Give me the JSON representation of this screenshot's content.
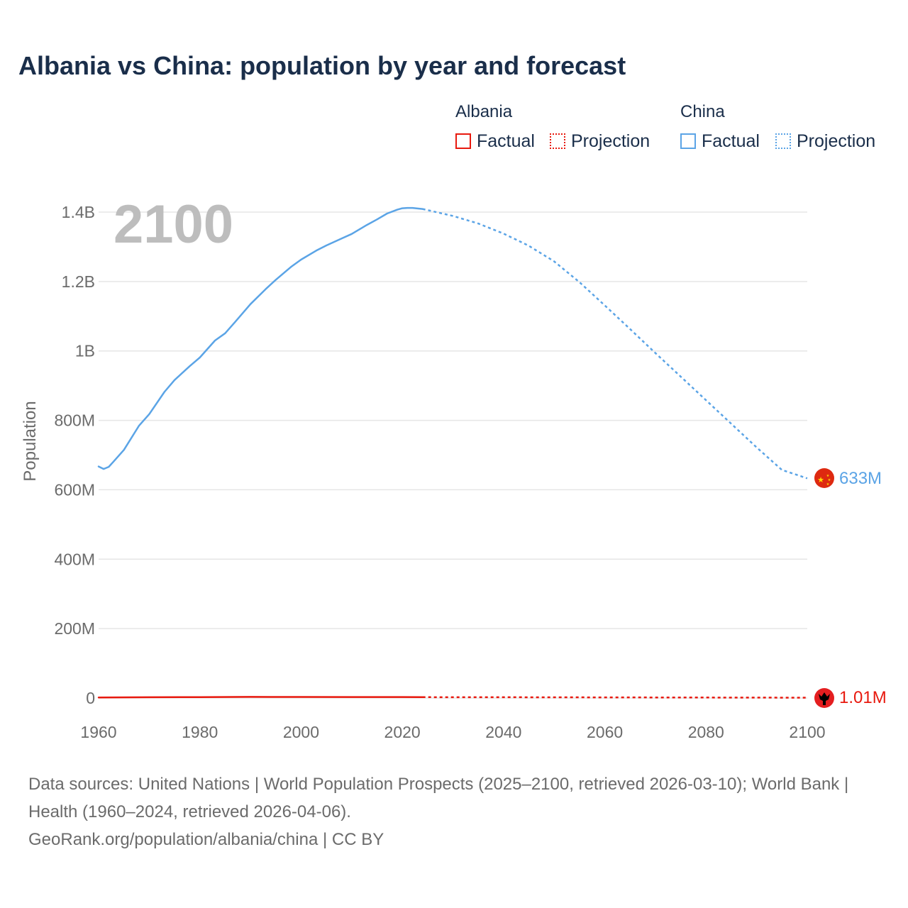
{
  "title": "Albania vs China: population by year and forecast",
  "legend": {
    "groups": [
      {
        "name": "Albania",
        "color": "#e8190e",
        "factual_label": "Factual",
        "projection_label": "Projection"
      },
      {
        "name": "China",
        "color": "#5ba4e6",
        "factual_label": "Factual",
        "projection_label": "Projection"
      }
    ]
  },
  "year_label": "2100",
  "end_labels": {
    "china": "633M",
    "albania": "1.01M"
  },
  "footer": {
    "sources": "Data sources: United Nations | World Population Prospects (2025–2100, retrieved 2026-03-10); World Bank | Health (1960–2024, retrieved 2026-04-06).",
    "credit": "GeoRank.org/population/albania/china | CC BY"
  },
  "chart_data": {
    "type": "line",
    "title": "Albania vs China: population by year and forecast",
    "xlabel": "",
    "ylabel": "Population",
    "xlim": [
      1960,
      2100
    ],
    "ylim": [
      0,
      1400000000
    ],
    "x_ticks": [
      1960,
      1980,
      2000,
      2020,
      2040,
      2060,
      2080,
      2100
    ],
    "x_tick_labels": [
      "1960",
      "1980",
      "2000",
      "2020",
      "2040",
      "2060",
      "2080",
      "2100"
    ],
    "y_ticks": [
      0,
      200000000,
      400000000,
      600000000,
      800000000,
      1000000000,
      1200000000,
      1400000000
    ],
    "y_tick_labels": [
      "0",
      "200M",
      "400M",
      "600M",
      "800M",
      "1B",
      "1.2B",
      "1.4B"
    ],
    "grid": true,
    "series": [
      {
        "name": "China",
        "color": "#5ba4e6",
        "factual": {
          "x": [
            1960,
            1961,
            1962,
            1963,
            1965,
            1968,
            1970,
            1973,
            1975,
            1978,
            1980,
            1983,
            1985,
            1987,
            1990,
            1993,
            1995,
            1998,
            2000,
            2003,
            2005,
            2008,
            2010,
            2013,
            2015,
            2017,
            2019,
            2020,
            2021,
            2022,
            2024
          ],
          "y": [
            667000000,
            660000000,
            666000000,
            682000000,
            715000000,
            785000000,
            818000000,
            882000000,
            916000000,
            956000000,
            981000000,
            1030000000,
            1051000000,
            1084000000,
            1135000000,
            1178000000,
            1205000000,
            1242000000,
            1263000000,
            1289000000,
            1304000000,
            1324000000,
            1337000000,
            1363000000,
            1379000000,
            1396000000,
            1407000000,
            1411000000,
            1412000000,
            1412000000,
            1409000000
          ]
        },
        "projection": {
          "x": [
            2024,
            2030,
            2035,
            2040,
            2045,
            2050,
            2055,
            2060,
            2065,
            2070,
            2075,
            2080,
            2085,
            2090,
            2095,
            2100
          ],
          "y": [
            1409000000,
            1389000000,
            1367000000,
            1338000000,
            1303000000,
            1258000000,
            1198000000,
            1131000000,
            1063000000,
            994000000,
            926000000,
            858000000,
            790000000,
            722000000,
            657000000,
            633000000
          ]
        }
      },
      {
        "name": "Albania",
        "color": "#e8190e",
        "factual": {
          "x": [
            1960,
            1970,
            1980,
            1990,
            2000,
            2010,
            2020,
            2024
          ],
          "y": [
            1640000,
            2160000,
            2680000,
            3290000,
            3120000,
            2910000,
            2840000,
            2400000
          ]
        },
        "projection": {
          "x": [
            2024,
            2040,
            2060,
            2080,
            2100
          ],
          "y": [
            2400000,
            2150000,
            1800000,
            1400000,
            1010000
          ]
        }
      }
    ]
  }
}
